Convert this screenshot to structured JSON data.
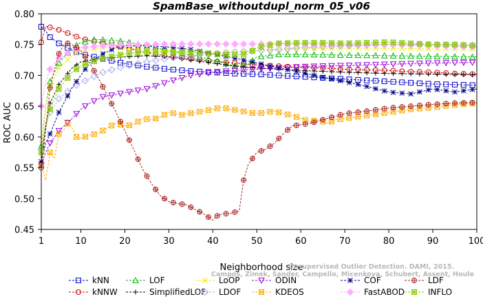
{
  "chart_data": {
    "type": "line",
    "title": "SpamBase_withoutdupl_norm_05_v06",
    "xlabel": "Neighborhood size",
    "ylabel": "ROC AUC",
    "xlim": [
      1,
      100
    ],
    "ylim": [
      0.45,
      0.8
    ],
    "xticks": [
      1,
      10,
      20,
      30,
      40,
      50,
      60,
      70,
      80,
      90,
      100
    ],
    "yticks": [
      "0.45",
      "0.50",
      "0.55",
      "0.60",
      "0.65",
      "0.70",
      "0.75",
      "0.80"
    ],
    "grid": false,
    "legend_position": "bottom",
    "watermark": [
      "Campos, Zimek, Sander, Campello, Micenkova, Schubert, Assent, Houle",
      "Unsupervised Outlier Detection. DAMI, 2015."
    ],
    "series": [
      {
        "name": "kNN",
        "color": "#0000cc",
        "marker": "square",
        "x": [
          1,
          2,
          3,
          5,
          8,
          10,
          15,
          20,
          25,
          30,
          35,
          40,
          45,
          50,
          55,
          60,
          65,
          70,
          75,
          80,
          85,
          90,
          95,
          100
        ],
        "y": [
          0.779,
          0.772,
          0.762,
          0.752,
          0.741,
          0.735,
          0.727,
          0.719,
          0.714,
          0.71,
          0.707,
          0.705,
          0.703,
          0.702,
          0.7,
          0.698,
          0.696,
          0.694,
          0.692,
          0.69,
          0.688,
          0.686,
          0.685,
          0.684
        ]
      },
      {
        "name": "kNNW",
        "color": "#cc0000",
        "marker": "circle",
        "x": [
          1,
          2,
          3,
          5,
          8,
          10,
          15,
          20,
          25,
          30,
          35,
          40,
          45,
          50,
          55,
          60,
          65,
          70,
          75,
          80,
          85,
          90,
          95,
          100
        ],
        "y": [
          0.754,
          0.78,
          0.778,
          0.774,
          0.766,
          0.76,
          0.752,
          0.745,
          0.737,
          0.731,
          0.727,
          0.723,
          0.72,
          0.717,
          0.715,
          0.713,
          0.712,
          0.71,
          0.709,
          0.708,
          0.706,
          0.705,
          0.703,
          0.702
        ]
      },
      {
        "name": "LOF",
        "color": "#00bb00",
        "marker": "triangle-up",
        "x": [
          1,
          2,
          3,
          5,
          8,
          10,
          13,
          15,
          20,
          25,
          30,
          35,
          40,
          45,
          48,
          50,
          55,
          60,
          70,
          80,
          90,
          100
        ],
        "y": [
          0.585,
          0.65,
          0.69,
          0.72,
          0.745,
          0.753,
          0.758,
          0.758,
          0.755,
          0.748,
          0.74,
          0.733,
          0.725,
          0.715,
          0.718,
          0.73,
          0.734,
          0.734,
          0.733,
          0.732,
          0.731,
          0.73
        ]
      },
      {
        "name": "SimplifiedLOF",
        "color": "#000000",
        "marker": "plus",
        "x": [
          1,
          2,
          3,
          5,
          8,
          10,
          15,
          20,
          25,
          30,
          35,
          40,
          45,
          50,
          55,
          60,
          70,
          80,
          90,
          100
        ],
        "y": [
          0.56,
          0.62,
          0.655,
          0.685,
          0.712,
          0.722,
          0.728,
          0.73,
          0.732,
          0.73,
          0.725,
          0.72,
          0.715,
          0.712,
          0.71,
          0.708,
          0.705,
          0.703,
          0.702,
          0.701
        ]
      },
      {
        "name": "LoOP",
        "color": "#eeee00",
        "marker": "x",
        "x": [
          1,
          2,
          3,
          5,
          8,
          10,
          15,
          20,
          25,
          30,
          35,
          40,
          45,
          50,
          55,
          60,
          70,
          80,
          90,
          100
        ],
        "y": [
          0.59,
          0.65,
          0.682,
          0.712,
          0.732,
          0.74,
          0.745,
          0.744,
          0.742,
          0.74,
          0.738,
          0.736,
          0.738,
          0.74,
          0.742,
          0.743,
          0.744,
          0.744,
          0.743,
          0.742
        ]
      },
      {
        "name": "LDOF",
        "color": "#aaaaee",
        "marker": "diamond",
        "x": [
          1,
          2,
          3,
          5,
          8,
          10,
          15,
          20,
          25,
          30,
          35,
          40,
          45,
          50,
          55,
          60,
          70,
          80,
          90,
          100
        ],
        "y": [
          0.58,
          0.62,
          0.64,
          0.662,
          0.68,
          0.688,
          0.705,
          0.715,
          0.722,
          0.728,
          0.732,
          0.735,
          0.738,
          0.74,
          0.742,
          0.745,
          0.748,
          0.75,
          0.75,
          0.749
        ]
      },
      {
        "name": "ODIN",
        "color": "#9900dd",
        "marker": "triangle-down",
        "x": [
          1,
          2,
          3,
          5,
          8,
          10,
          12,
          15,
          20,
          25,
          30,
          35,
          40,
          45,
          50,
          55,
          60,
          70,
          80,
          90,
          100
        ],
        "y": [
          0.555,
          0.575,
          0.59,
          0.61,
          0.63,
          0.645,
          0.655,
          0.665,
          0.672,
          0.678,
          0.69,
          0.7,
          0.705,
          0.708,
          0.71,
          0.712,
          0.714,
          0.716,
          0.718,
          0.72,
          0.721
        ]
      },
      {
        "name": "KDEOS",
        "color": "#ffaa00",
        "marker": "square-x",
        "x": [
          1,
          2,
          3,
          4,
          5,
          6,
          7,
          8,
          9,
          10,
          12,
          14,
          16,
          18,
          20,
          22,
          24,
          26,
          28,
          30,
          33,
          36,
          38,
          40,
          42,
          44,
          46,
          48,
          50,
          52,
          54,
          56,
          58,
          60,
          62,
          64,
          66,
          68,
          70,
          75,
          80,
          85,
          90,
          95,
          100
        ],
        "y": [
          0.555,
          0.53,
          0.575,
          0.565,
          0.605,
          0.61,
          0.622,
          0.615,
          0.6,
          0.598,
          0.603,
          0.606,
          0.615,
          0.622,
          0.618,
          0.62,
          0.63,
          0.628,
          0.632,
          0.64,
          0.636,
          0.64,
          0.642,
          0.645,
          0.648,
          0.645,
          0.643,
          0.64,
          0.638,
          0.64,
          0.642,
          0.638,
          0.635,
          0.63,
          0.625,
          0.628,
          0.622,
          0.628,
          0.63,
          0.635,
          0.64,
          0.645,
          0.648,
          0.652,
          0.655
        ]
      },
      {
        "name": "COF",
        "color": "#000088",
        "marker": "asterisk",
        "x": [
          1,
          2,
          3,
          5,
          8,
          10,
          12,
          15,
          18,
          20,
          25,
          30,
          35,
          40,
          45,
          50,
          55,
          60,
          65,
          70,
          75,
          80,
          85,
          90,
          95,
          100
        ],
        "y": [
          0.56,
          0.59,
          0.605,
          0.64,
          0.68,
          0.7,
          0.72,
          0.735,
          0.745,
          0.748,
          0.748,
          0.746,
          0.742,
          0.735,
          0.728,
          0.72,
          0.712,
          0.705,
          0.697,
          0.69,
          0.682,
          0.673,
          0.67,
          0.678,
          0.673,
          0.678
        ]
      },
      {
        "name": "FastABOD",
        "color": "#ffaaff",
        "marker": "diamond-filled",
        "x": [
          1,
          2,
          3,
          5,
          8,
          10,
          15,
          20,
          25,
          30,
          35,
          40,
          45,
          50,
          55,
          60,
          70,
          80,
          90,
          100
        ],
        "y": [
          0.65,
          0.69,
          0.71,
          0.728,
          0.74,
          0.745,
          0.748,
          0.75,
          0.75,
          0.751,
          0.751,
          0.751,
          0.751,
          0.751,
          0.751,
          0.751,
          0.75,
          0.75,
          0.748,
          0.746
        ]
      },
      {
        "name": "LDF",
        "color": "#aa2222",
        "marker": "circle-plus",
        "x": [
          1,
          2,
          3,
          4,
          5,
          6,
          7,
          8,
          9,
          10,
          12,
          14,
          16,
          18,
          20,
          22,
          24,
          26,
          28,
          30,
          32,
          34,
          36,
          38,
          40,
          41,
          42,
          44,
          46,
          47,
          48,
          49,
          50,
          52,
          54,
          56,
          58,
          60,
          62,
          65,
          68,
          70,
          75,
          80,
          85,
          90,
          95,
          100
        ],
        "y": [
          0.55,
          0.61,
          0.68,
          0.71,
          0.735,
          0.748,
          0.752,
          0.75,
          0.745,
          0.74,
          0.72,
          0.695,
          0.668,
          0.64,
          0.61,
          0.58,
          0.548,
          0.525,
          0.505,
          0.495,
          0.492,
          0.49,
          0.482,
          0.475,
          0.465,
          0.472,
          0.475,
          0.476,
          0.48,
          0.53,
          0.555,
          0.565,
          0.575,
          0.58,
          0.59,
          0.605,
          0.618,
          0.62,
          0.622,
          0.628,
          0.634,
          0.638,
          0.642,
          0.647,
          0.65,
          0.653,
          0.655,
          0.656
        ]
      },
      {
        "name": "INFLO",
        "color": "#88cc00",
        "marker": "square-asterisk",
        "x": [
          1,
          2,
          3,
          5,
          8,
          10,
          15,
          20,
          25,
          30,
          35,
          40,
          45,
          48,
          50,
          55,
          60,
          65,
          70,
          75,
          80,
          85,
          90,
          95,
          100
        ],
        "y": [
          0.575,
          0.615,
          0.645,
          0.678,
          0.705,
          0.715,
          0.728,
          0.735,
          0.738,
          0.738,
          0.738,
          0.735,
          0.733,
          0.735,
          0.745,
          0.752,
          0.753,
          0.753,
          0.752,
          0.753,
          0.754,
          0.752,
          0.75,
          0.75,
          0.748
        ]
      }
    ]
  }
}
